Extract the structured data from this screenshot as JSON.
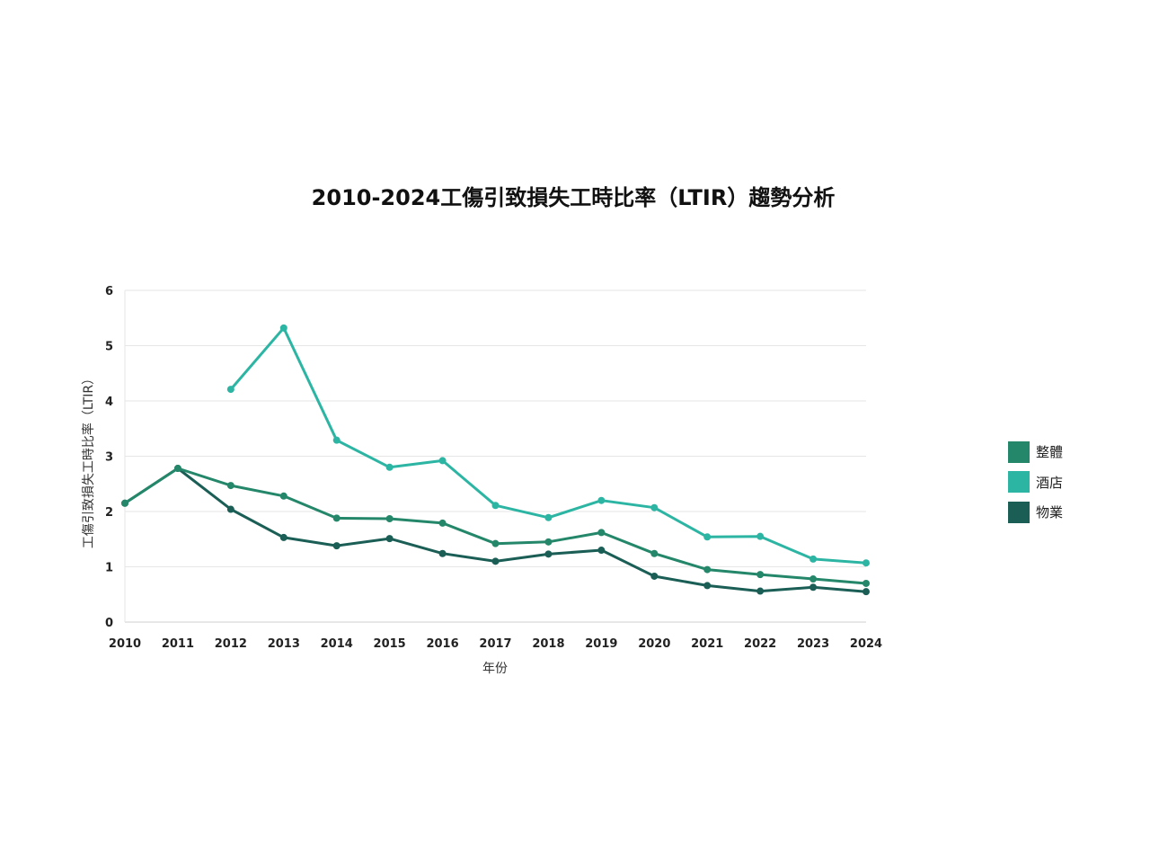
{
  "chart_data": {
    "type": "line",
    "title": "2010-2024工傷引致損失工時比率（LTIR）趨勢分析",
    "xlabel": "年份",
    "ylabel": "工傷引致損失工時比率（LTIR）",
    "ylim": [
      0,
      6
    ],
    "yticks": [
      0,
      1,
      2,
      3,
      4,
      5,
      6
    ],
    "grid": true,
    "legend_position": "right",
    "x": [
      "2010",
      "2011",
      "2012",
      "2013",
      "2014",
      "2015",
      "2016",
      "2017",
      "2018",
      "2019",
      "2020",
      "2021",
      "2022",
      "2023",
      "2024"
    ],
    "series": [
      {
        "name": "整體",
        "color": "#24876A",
        "values": [
          2.15,
          2.78,
          2.47,
          2.28,
          1.88,
          1.87,
          1.79,
          1.42,
          1.45,
          1.62,
          1.24,
          0.95,
          0.86,
          0.78,
          0.7
        ]
      },
      {
        "name": "酒店",
        "color": "#2DB5A4",
        "values": [
          null,
          null,
          4.21,
          5.32,
          3.29,
          2.8,
          2.92,
          2.11,
          1.89,
          2.2,
          2.07,
          1.54,
          1.55,
          1.14,
          1.07
        ]
      },
      {
        "name": "物業",
        "color": "#1A5E56",
        "values": [
          2.15,
          2.78,
          2.04,
          1.53,
          1.38,
          1.51,
          1.24,
          1.1,
          1.23,
          1.3,
          0.83,
          0.66,
          0.56,
          0.63,
          0.55
        ]
      }
    ]
  }
}
